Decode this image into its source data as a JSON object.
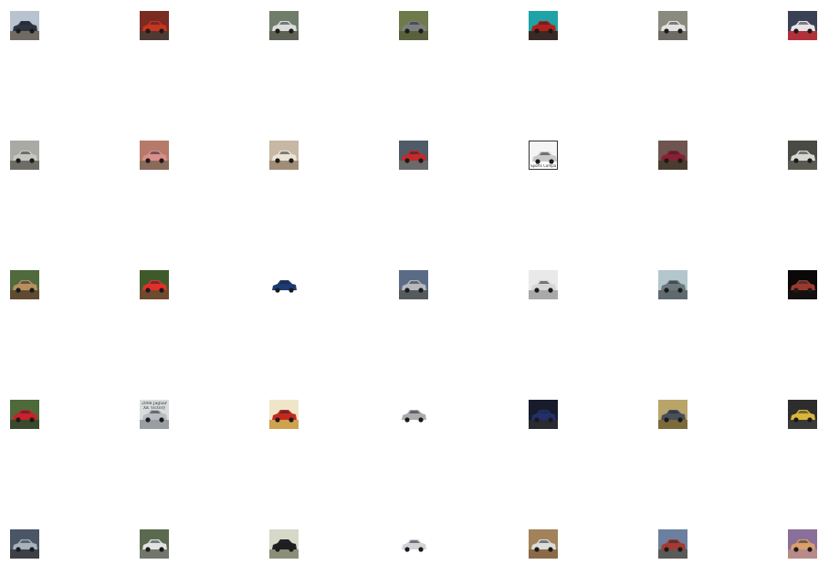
{
  "grid": {
    "rows": 5,
    "cols": 7,
    "images": [
      {
        "name": "car-thumbnail",
        "bg": "#b9c3cf",
        "car": "#2d3440",
        "ground": "#6f6a64"
      },
      {
        "name": "car-thumbnail",
        "bg": "#7a2b22",
        "car": "#c9341f",
        "ground": "#4e3a32"
      },
      {
        "name": "car-thumbnail",
        "bg": "#6f7d6a",
        "car": "#d9dcd8",
        "ground": "#5d6254"
      },
      {
        "name": "car-thumbnail",
        "bg": "#6f7a4b",
        "car": "#7c7e80",
        "ground": "#59613c"
      },
      {
        "name": "car-thumbnail",
        "bg": "#1fa3a6",
        "car": "#b3201c",
        "ground": "#3a2a25"
      },
      {
        "name": "car-thumbnail",
        "bg": "#8a8a7e",
        "car": "#e4e2e0",
        "ground": "#6e6b64"
      },
      {
        "name": "car-thumbnail",
        "bg": "#3a4155",
        "car": "#e8e3e6",
        "ground": "#b2303a"
      },
      {
        "name": "car-thumbnail",
        "bg": "#a9aaa4",
        "car": "#c7c7c2",
        "ground": "#6d6d66"
      },
      {
        "name": "car-thumbnail",
        "bg": "#b57a6a",
        "car": "#d98f8a",
        "ground": "#8a6a5a"
      },
      {
        "name": "car-thumbnail",
        "bg": "#c7b8a4",
        "car": "#ebe3d6",
        "ground": "#a08d78"
      },
      {
        "name": "car-thumbnail",
        "bg": "#4f5b68",
        "car": "#c32a2a",
        "ground": "#6a6a6a"
      },
      {
        "name": "car-thumbnail",
        "bg": "#f4f4f4",
        "car": "#c9c9c9",
        "ground": "#ffffff",
        "caption": "bottom_caption"
      },
      {
        "name": "car-thumbnail",
        "bg": "#6e5550",
        "car": "#8b1f33",
        "ground": "#4a3c2f"
      },
      {
        "name": "car-thumbnail",
        "bg": "#4a4a44",
        "car": "#d8d6d0",
        "ground": "#5a5a52"
      },
      {
        "name": "car-thumbnail",
        "bg": "#4f6a3b",
        "car": "#b78f5f",
        "ground": "#5f4a32"
      },
      {
        "name": "car-thumbnail",
        "bg": "#3f5a2a",
        "car": "#e0302a",
        "ground": "#6e4a2e"
      },
      {
        "name": "car-thumbnail",
        "bg": "#ffffff",
        "car": "#1c3b72",
        "ground": "#ffffff"
      },
      {
        "name": "car-thumbnail",
        "bg": "#5a6b86",
        "car": "#b6b8bc",
        "ground": "#555a5e"
      },
      {
        "name": "car-thumbnail",
        "bg": "#e9e9e9",
        "car": "#d6d6d6",
        "ground": "#a9a9a9"
      },
      {
        "name": "car-thumbnail",
        "bg": "#b3c6cc",
        "car": "#6d787c",
        "ground": "#5e6a6e"
      },
      {
        "name": "car-thumbnail",
        "bg": "#0a0808",
        "car": "#9a3a2e",
        "ground": "#151010"
      },
      {
        "name": "car-thumbnail",
        "bg": "#4e6a3a",
        "car": "#c8222b",
        "ground": "#3b4a2c"
      },
      {
        "name": "car-thumbnail",
        "bg": "#d9dcdc",
        "car": "#b8bcc0",
        "ground": "#9a9ea2",
        "caption": "jaguar_caption"
      },
      {
        "name": "car-thumbnail",
        "bg": "#efe6c9",
        "car": "#c22a20",
        "ground": "#cfa24e"
      },
      {
        "name": "car-thumbnail",
        "bg": "#ffffff",
        "car": "#a9abad",
        "ground": "#ffffff"
      },
      {
        "name": "car-thumbnail",
        "bg": "#171b2c",
        "car": "#232f6c",
        "ground": "#2a2a32"
      },
      {
        "name": "car-thumbnail",
        "bg": "#b9a46a",
        "car": "#4a4f5a",
        "ground": "#7b6a3a"
      },
      {
        "name": "car-thumbnail",
        "bg": "#2d2d2d",
        "car": "#d9b53a",
        "ground": "#3a3a3a"
      },
      {
        "name": "car-thumbnail",
        "bg": "#4a5565",
        "car": "#a8b2bd",
        "ground": "#3d4046"
      },
      {
        "name": "car-thumbnail",
        "bg": "#5b6a4f",
        "car": "#e2e2e0",
        "ground": "#72766c"
      },
      {
        "name": "car-thumbnail",
        "bg": "#d7d9c8",
        "car": "#1e1e22",
        "ground": "#8b8f7a"
      },
      {
        "name": "car-thumbnail",
        "bg": "#ffffff",
        "car": "#d0d2d6",
        "ground": "#ffffff"
      },
      {
        "name": "car-thumbnail",
        "bg": "#a2825a",
        "car": "#dcdcd8",
        "ground": "#8a6a48"
      },
      {
        "name": "car-thumbnail",
        "bg": "#6c7fa0",
        "car": "#a63a30",
        "ground": "#5c5a58"
      },
      {
        "name": "car-thumbnail",
        "bg": "#8a6f9a",
        "car": "#d9a06a",
        "ground": "#b98a8a"
      }
    ]
  },
  "bottom_caption": "Sports Compact",
  "jaguar_caption": {
    "line1": "2006 Jaguar",
    "line2": "XK Victory"
  }
}
